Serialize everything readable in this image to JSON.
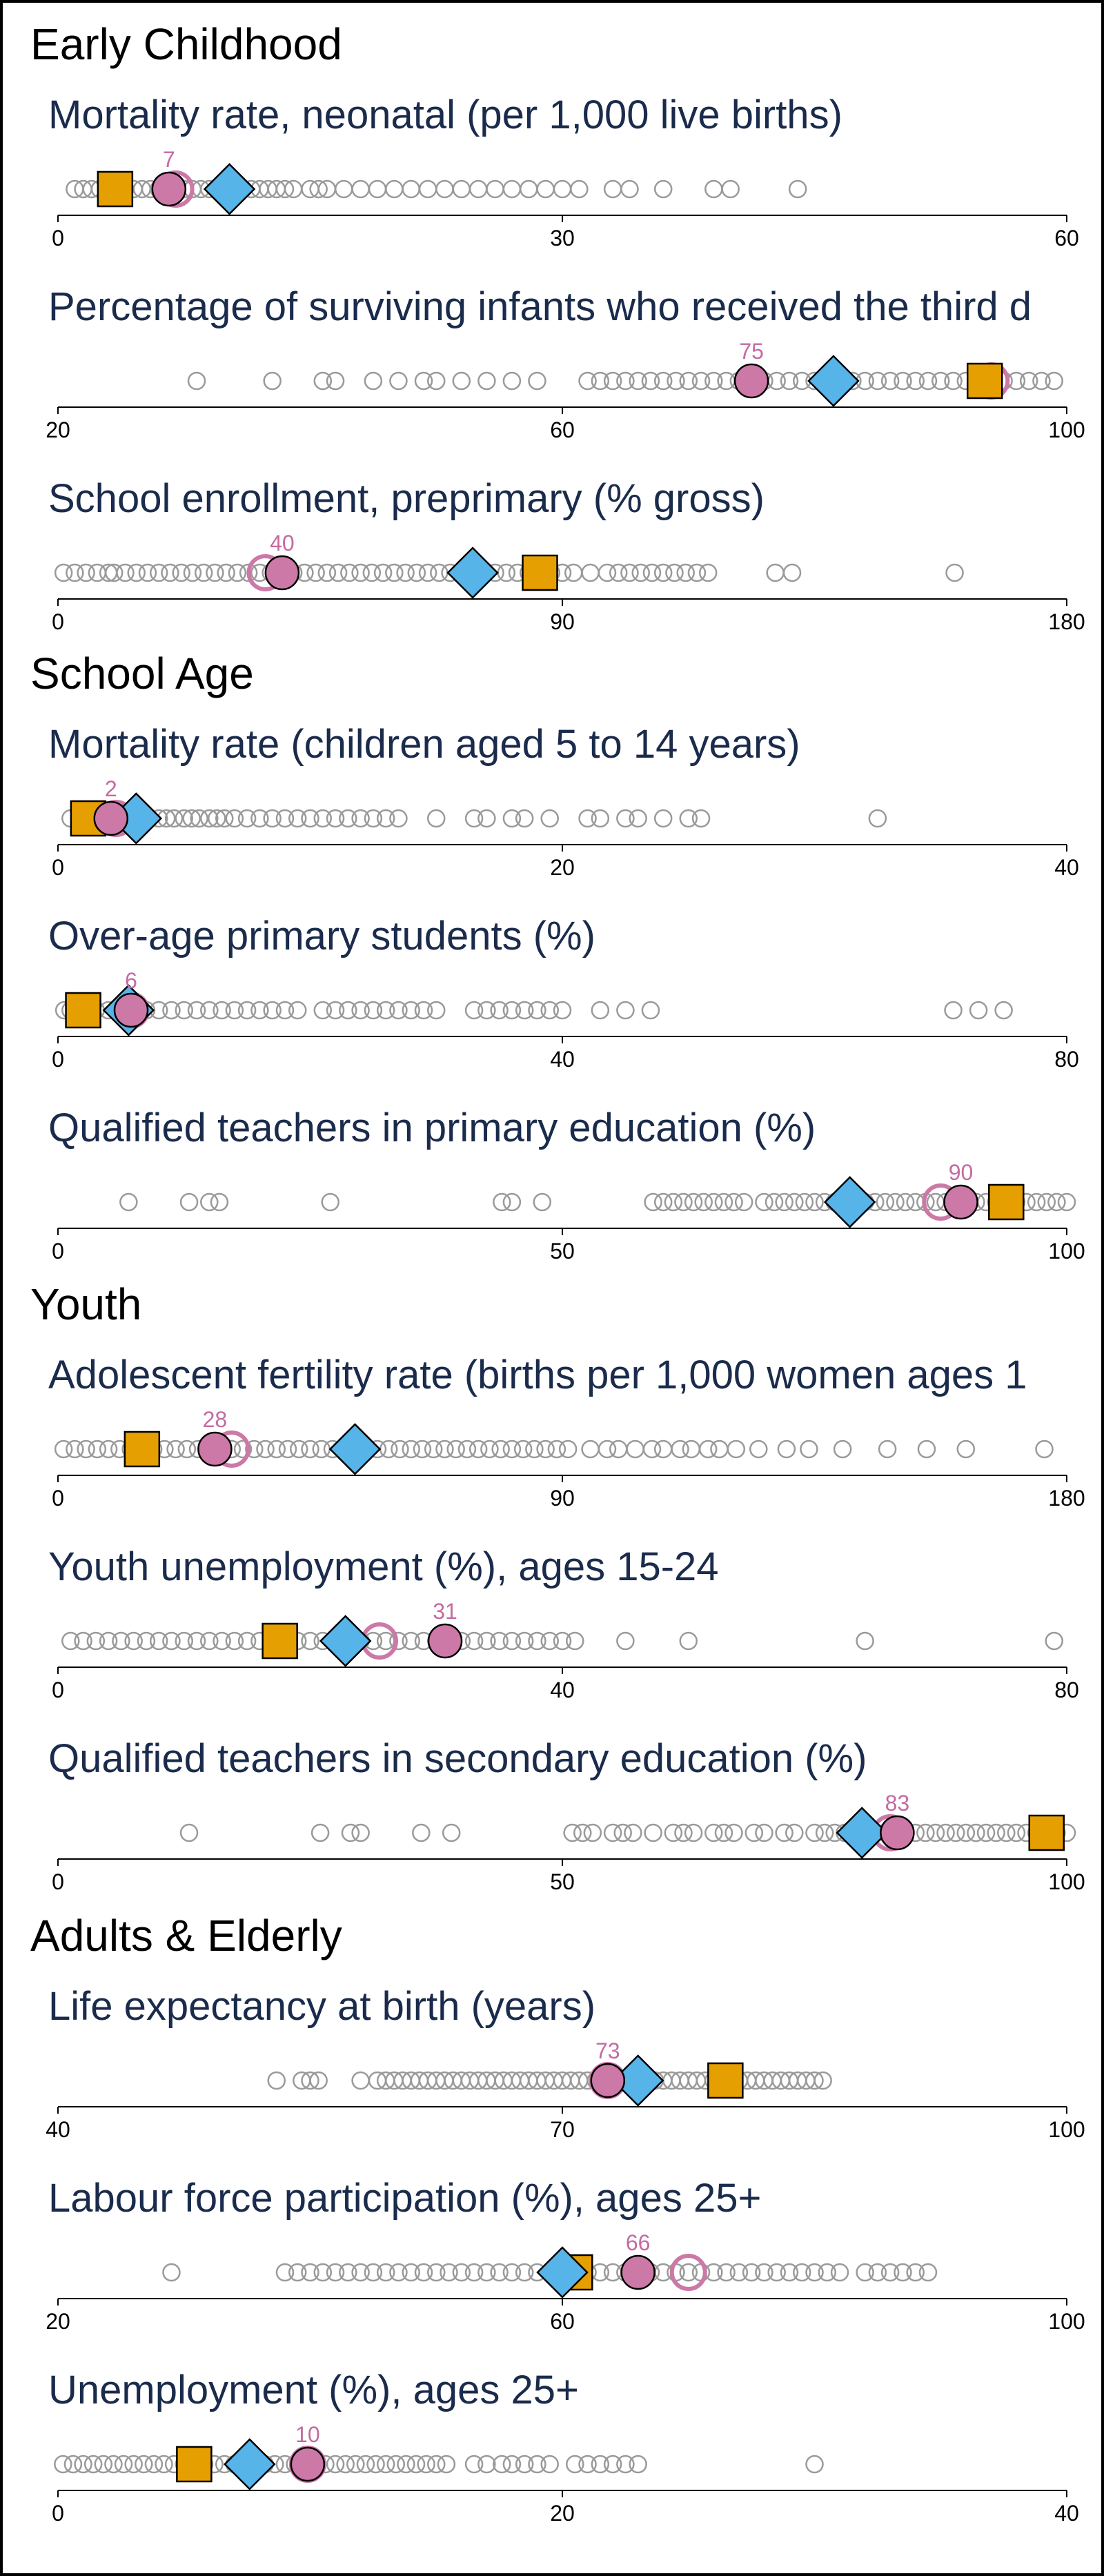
{
  "colors": {
    "background": "#ffffff",
    "section_title": "#000000",
    "indicator_title": "#1a2b4c",
    "countries": "#9a9a9a",
    "highlight": "#cc79a7",
    "diamond": "#56b4e9",
    "square": "#e69f00",
    "axis": "#000000"
  },
  "chart_data": {
    "type": "scatter",
    "sections": [
      {
        "title": "Early Childhood",
        "indicators": [
          {
            "title": "Mortality rate, neonatal (per 1,000 live births)",
            "xlim": [
              0,
              60
            ],
            "ticks": [
              0,
              30,
              60
            ],
            "countries": [
              1,
              1.5,
              2,
              2.5,
              3,
              3.5,
              4,
              4.5,
              5,
              5.5,
              6,
              6.5,
              7,
              7.5,
              8,
              8.5,
              9,
              9.5,
              10,
              10.5,
              11,
              11.5,
              12,
              12.5,
              13,
              13.5,
              14,
              15,
              15.5,
              16,
              17,
              18,
              19,
              20,
              21,
              22,
              23,
              24,
              25,
              26,
              27,
              28,
              29,
              30,
              31,
              33,
              34,
              36,
              39,
              40,
              44
            ],
            "highlight_circle": 7,
            "highlight_point": 6.6,
            "value_label": "7",
            "diamond": 10.2,
            "square": 3.4
          },
          {
            "title": "Percentage of surviving infants who received the third d",
            "xlim": [
              20,
              100
            ],
            "ticks": [
              20,
              60,
              100
            ],
            "countries": [
              31,
              37,
              41,
              42,
              45,
              47,
              49,
              50,
              52,
              54,
              56,
              58,
              62,
              63,
              64,
              65,
              66,
              67,
              68,
              69,
              70,
              71,
              72,
              73,
              74,
              76,
              77,
              78,
              79,
              80,
              81,
              82,
              83,
              84,
              85,
              86,
              87,
              88,
              89,
              90,
              91,
              92,
              93,
              94,
              95,
              96,
              97,
              98,
              99
            ],
            "highlight_circle": 94,
            "highlight_point": 75,
            "value_label": "75",
            "diamond": 81.5,
            "square": 93.5
          },
          {
            "title": "School enrollment, preprimary (% gross)",
            "xlim": [
              0,
              180
            ],
            "ticks": [
              0,
              90,
              180
            ],
            "countries": [
              1,
              3,
              5,
              7,
              9,
              10,
              12,
              14,
              16,
              18,
              20,
              22,
              24,
              26,
              28,
              30,
              32,
              34,
              36,
              38,
              42,
              44,
              46,
              48,
              50,
              52,
              54,
              56,
              58,
              60,
              62,
              64,
              66,
              68,
              70,
              72,
              74,
              76,
              78,
              80,
              82,
              84,
              86,
              88,
              90,
              92,
              95,
              98,
              100,
              102,
              104,
              106,
              108,
              110,
              112,
              114,
              116,
              128,
              131,
              160
            ],
            "highlight_circle": 37,
            "highlight_point": 40,
            "value_label": "40",
            "diamond": 74,
            "square": 86
          }
        ]
      },
      {
        "title": "School Age",
        "indicators": [
          {
            "title": "Mortality rate (children aged 5 to 14 years)",
            "xlim": [
              0,
              40
            ],
            "ticks": [
              0,
              20,
              40
            ],
            "countries": [
              0.5,
              1,
              1.3,
              1.6,
              2,
              2.3,
              2.6,
              3,
              3.3,
              3.6,
              4,
              4.3,
              4.6,
              5,
              5.3,
              5.6,
              6,
              6.3,
              6.6,
              7,
              7.5,
              8,
              8.5,
              9,
              9.5,
              10,
              10.5,
              11,
              11.5,
              12,
              12.5,
              13,
              13.5,
              15,
              16.5,
              17,
              18,
              18.5,
              19.5,
              21,
              21.5,
              22.5,
              23,
              24,
              25,
              25.5,
              32.5
            ],
            "highlight_circle": 2.3,
            "highlight_point": 2.1,
            "value_label": "2",
            "diamond": 3.1,
            "square": 1.2
          },
          {
            "title": "Over-age primary students (%)",
            "xlim": [
              0,
              80
            ],
            "ticks": [
              0,
              40,
              80
            ],
            "countries": [
              0.5,
              1,
              1.5,
              2,
              3,
              4,
              5,
              6,
              7,
              8,
              9,
              10,
              11,
              12,
              13,
              14,
              15,
              16,
              17,
              18,
              19,
              21,
              22,
              23,
              24,
              25,
              26,
              27,
              28,
              29,
              30,
              33,
              34,
              35,
              36,
              37,
              38,
              39,
              40,
              43,
              45,
              47,
              71,
              73,
              75
            ],
            "highlight_circle": 5.8,
            "highlight_point": 5.8,
            "value_label": "6",
            "diamond": 5.6,
            "square": 2
          },
          {
            "title": "Qualified teachers in primary education (%)",
            "xlim": [
              0,
              100
            ],
            "ticks": [
              0,
              50,
              100
            ],
            "countries": [
              7,
              13,
              15,
              16,
              27,
              44,
              45,
              48,
              59,
              60,
              61,
              62,
              63,
              64,
              65,
              66,
              67,
              68,
              70,
              71,
              72,
              73,
              74,
              75,
              76,
              77,
              78,
              79,
              80,
              81,
              82,
              83,
              84,
              85,
              86,
              87,
              88,
              89,
              90,
              91,
              92,
              93,
              94,
              95,
              96,
              97,
              98,
              99,
              100
            ],
            "highlight_circle": 87.5,
            "highlight_point": 89.5,
            "value_label": "90",
            "diamond": 78.5,
            "square": 94
          }
        ]
      },
      {
        "title": "Youth",
        "indicators": [
          {
            "title": "Adolescent fertility rate (births per 1,000 women ages 1",
            "xlim": [
              0,
              180
            ],
            "ticks": [
              0,
              90,
              180
            ],
            "countries": [
              1,
              3,
              5,
              7,
              9,
              11,
              13,
              15,
              17,
              19,
              21,
              23,
              25,
              27,
              29,
              31,
              33,
              35,
              37,
              39,
              41,
              43,
              45,
              47,
              49,
              51,
              53,
              55,
              57,
              59,
              61,
              63,
              65,
              67,
              69,
              71,
              73,
              75,
              77,
              79,
              81,
              83,
              85,
              87,
              89,
              91,
              95,
              98,
              100,
              103,
              106,
              108,
              111,
              113,
              116,
              118,
              121,
              125,
              130,
              134,
              140,
              148,
              155,
              162,
              176
            ],
            "highlight_circle": 31,
            "highlight_point": 28,
            "value_label": "28",
            "diamond": 53,
            "square": 15
          },
          {
            "title": "Youth unemployment (%), ages 15-24",
            "xlim": [
              0,
              80
            ],
            "ticks": [
              0,
              40,
              80
            ],
            "countries": [
              1,
              2,
              3,
              4,
              5,
              6,
              7,
              8,
              9,
              10,
              11,
              12,
              13,
              14,
              15,
              16,
              17,
              18,
              19,
              20,
              21,
              22,
              23,
              24,
              25,
              26,
              27,
              28,
              29,
              30,
              31,
              32,
              33,
              34,
              35,
              36,
              37,
              38,
              39,
              40,
              41,
              45,
              50,
              64,
              79
            ],
            "highlight_circle": 25.5,
            "highlight_point": 30.7,
            "value_label": "31",
            "diamond": 22.8,
            "square": 17.6
          },
          {
            "title": "Qualified teachers in secondary education (%)",
            "xlim": [
              0,
              100
            ],
            "ticks": [
              0,
              50,
              100
            ],
            "countries": [
              13,
              26,
              29,
              30,
              36,
              39,
              51,
              52,
              53,
              55,
              56,
              57,
              59,
              61,
              62,
              63,
              65,
              66,
              67,
              69,
              70,
              72,
              73,
              75,
              76,
              77,
              78,
              79,
              80,
              81,
              82,
              83,
              84,
              85,
              86,
              87,
              88,
              89,
              90,
              91,
              92,
              93,
              94,
              95,
              96,
              97,
              98,
              99,
              100
            ],
            "highlight_circle": 82.5,
            "highlight_point": 83.2,
            "value_label": "83",
            "diamond": 79.7,
            "square": 98
          }
        ]
      },
      {
        "title": "Adults & Elderly",
        "indicators": [
          {
            "title": "Life expectancy at birth (years)",
            "xlim": [
              40,
              100
            ],
            "ticks": [
              40,
              70,
              100
            ],
            "countries": [
              53,
              54.5,
              55,
              55.5,
              58,
              59,
              59.5,
              60,
              60.5,
              61,
              61.5,
              62,
              62.5,
              63,
              63.5,
              64,
              64.5,
              65,
              65.5,
              66,
              66.5,
              67,
              67.5,
              68,
              68.5,
              69,
              69.5,
              70,
              70.5,
              71,
              71.5,
              72,
              72.5,
              73,
              73.5,
              74,
              74.5,
              75,
              75.5,
              76,
              76.5,
              77,
              77.5,
              78,
              78.5,
              79,
              79.5,
              80,
              80.5,
              81,
              81.5,
              82,
              82.5,
              83,
              83.5,
              84,
              84.5,
              85,
              85.5
            ],
            "highlight_circle": 72.7,
            "highlight_point": 72.7,
            "value_label": "73",
            "diamond": 74.5,
            "square": 79.7
          },
          {
            "title": "Labour force participation (%), ages 25+",
            "xlim": [
              20,
              100
            ],
            "ticks": [
              20,
              60,
              100
            ],
            "countries": [
              29,
              38,
              39,
              40,
              41,
              42,
              43,
              44,
              45,
              46,
              47,
              48,
              49,
              50,
              51,
              52,
              53,
              54,
              55,
              56,
              57,
              58,
              59,
              60,
              61,
              62,
              63,
              64,
              65,
              66,
              67,
              68,
              69,
              70,
              71,
              72,
              73,
              74,
              75,
              76,
              77,
              78,
              79,
              80,
              81,
              82,
              84,
              85,
              86,
              87,
              88,
              89
            ],
            "highlight_circle": 70,
            "highlight_point": 66,
            "value_label": "66",
            "diamond": 60,
            "square": 61
          },
          {
            "title": "Unemployment (%), ages 25+",
            "xlim": [
              0,
              40
            ],
            "ticks": [
              0,
              20,
              40
            ],
            "countries": [
              0.2,
              0.6,
              1,
              1.4,
              1.8,
              2.2,
              2.6,
              3,
              3.4,
              3.8,
              4.2,
              4.6,
              5,
              5.4,
              5.8,
              6.2,
              6.6,
              7,
              7.4,
              7.8,
              8.2,
              8.6,
              9,
              9.4,
              9.8,
              10.2,
              10.6,
              11,
              11.4,
              11.8,
              12.2,
              12.6,
              13,
              13.4,
              13.8,
              14.2,
              14.6,
              15,
              15.4,
              16.5,
              17,
              17.6,
              18,
              18.5,
              19,
              19.5,
              20.5,
              21,
              21.5,
              22,
              22.5,
              23,
              30
            ],
            "highlight_circle": 9.9,
            "highlight_point": 9.9,
            "value_label": "10",
            "diamond": 7.6,
            "square": 5.4
          }
        ]
      }
    ]
  }
}
